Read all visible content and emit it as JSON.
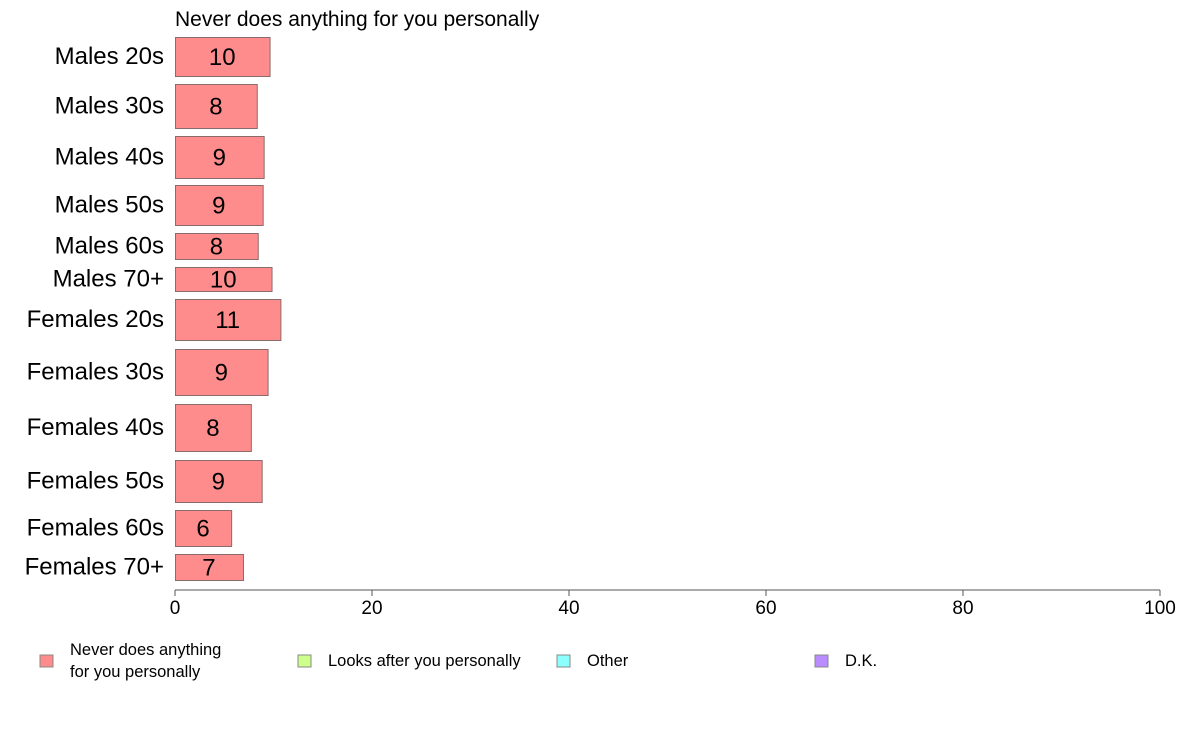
{
  "chart_data": {
    "type": "bar",
    "orientation": "horizontal",
    "title": "Never does anything for you personally",
    "xlabel": "",
    "ylabel": "",
    "xlim": [
      0,
      100
    ],
    "xticks": [
      0,
      20,
      40,
      60,
      80,
      100
    ],
    "grid": false,
    "legend_position": "bottom",
    "categories": [
      "Males 20s",
      "Males 30s",
      "Males 40s",
      "Males 50s",
      "Males 60s",
      "Males 70+",
      "Females 20s",
      "Females 30s",
      "Females 40s",
      "Females 50s",
      "Females 60s",
      "Females 70+"
    ],
    "series": [
      {
        "name": "Never does anything for you personally",
        "legend_lines": [
          "Never does anything",
          "for you personally"
        ],
        "color": "#ff8c8c",
        "values": [
          9.6,
          8.3,
          9.0,
          8.9,
          8.4,
          9.8,
          10.7,
          9.4,
          7.7,
          8.8,
          5.7,
          6.9
        ],
        "labels": [
          "10",
          "8",
          "9",
          "9",
          "8",
          "10",
          "11",
          "9",
          "8",
          "9",
          "6",
          "7"
        ]
      }
    ],
    "legend": [
      {
        "lines": [
          "Never does anything",
          "for you personally"
        ],
        "color": "#ff8c8c"
      },
      {
        "lines": [
          "Looks after you personally"
        ],
        "color": "#ccff8c"
      },
      {
        "lines": [
          "Other"
        ],
        "color": "#8cffff"
      },
      {
        "lines": [
          "D.K."
        ],
        "color": "#b98cff"
      }
    ]
  }
}
